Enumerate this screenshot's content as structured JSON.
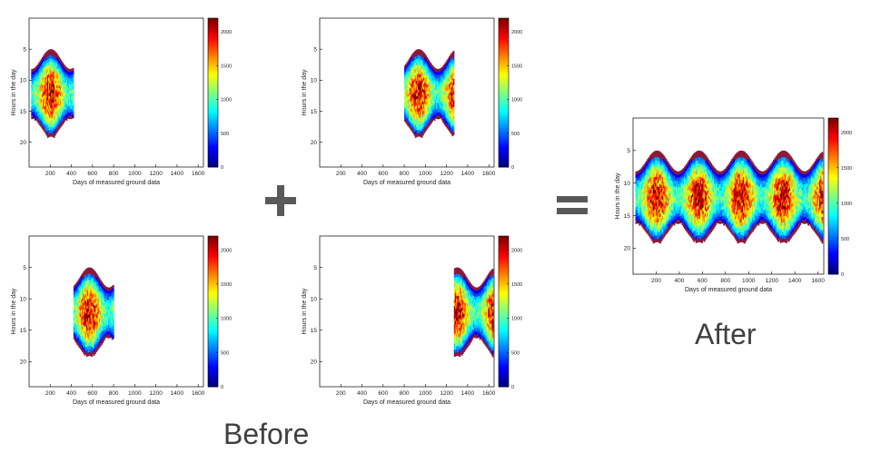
{
  "labels": {
    "before": "Before",
    "after": "After"
  },
  "operators": {
    "plus": "plus-icon",
    "equals": "equals-icon"
  },
  "colormap": "jet",
  "chart_data": [
    {
      "id": "before-1",
      "type": "heatmap",
      "xlabel": "Days of measured ground data",
      "ylabel": "Hours in the day",
      "xlim": [
        0,
        1650
      ],
      "ylim": [
        24,
        0
      ],
      "xticks": [
        "200",
        "400",
        "600",
        "800",
        "1000",
        "1200",
        "1400",
        "1600"
      ],
      "yticks": [
        "5",
        "10",
        "15",
        "20"
      ],
      "colorbar": {
        "ticks": [
          "0",
          "500",
          "1000",
          "1500",
          "2000"
        ],
        "max": 2200
      },
      "days": [
        20,
        420
      ]
    },
    {
      "id": "before-2",
      "type": "heatmap",
      "xlabel": "Days of measured ground data",
      "ylabel": "Hours in the day",
      "xlim": [
        0,
        1650
      ],
      "ylim": [
        24,
        0
      ],
      "xticks": [
        "200",
        "400",
        "600",
        "800",
        "1000",
        "1200",
        "1400",
        "1600"
      ],
      "yticks": [
        "5",
        "10",
        "15",
        "20"
      ],
      "colorbar": {
        "ticks": [
          "0",
          "500",
          "1000",
          "1500",
          "2000"
        ],
        "max": 2200
      },
      "days": [
        800,
        1270
      ]
    },
    {
      "id": "before-3",
      "type": "heatmap",
      "xlabel": "Days of measured ground data",
      "ylabel": "Hours in the day",
      "xlim": [
        0,
        1650
      ],
      "ylim": [
        24,
        0
      ],
      "xticks": [
        "200",
        "400",
        "600",
        "800",
        "1000",
        "1200",
        "1400",
        "1600"
      ],
      "yticks": [
        "5",
        "10",
        "15",
        "20"
      ],
      "colorbar": {
        "ticks": [
          "0",
          "500",
          "1000",
          "1500",
          "2000"
        ],
        "max": 2200
      },
      "days": [
        420,
        800
      ]
    },
    {
      "id": "before-4",
      "type": "heatmap",
      "xlabel": "Days of measured ground data",
      "ylabel": "Hours in the day",
      "xlim": [
        0,
        1650
      ],
      "ylim": [
        24,
        0
      ],
      "xticks": [
        "200",
        "400",
        "600",
        "800",
        "1000",
        "1200",
        "1400",
        "1600"
      ],
      "yticks": [
        "5",
        "10",
        "15",
        "20"
      ],
      "colorbar": {
        "ticks": [
          "0",
          "500",
          "1000",
          "1500",
          "2000"
        ],
        "max": 2200
      },
      "days": [
        1270,
        1640
      ]
    },
    {
      "id": "after",
      "type": "heatmap",
      "xlabel": "Days of measured ground data",
      "ylabel": "Hours in the day",
      "xlim": [
        0,
        1650
      ],
      "ylim": [
        24,
        0
      ],
      "xticks": [
        "200",
        "400",
        "600",
        "800",
        "1000",
        "1200",
        "1400",
        "1600"
      ],
      "yticks": [
        "5",
        "10",
        "15",
        "20"
      ],
      "colorbar": {
        "ticks": [
          "0",
          "500",
          "1000",
          "1500",
          "2000"
        ],
        "max": 2200
      },
      "days": [
        20,
        1640
      ]
    }
  ]
}
